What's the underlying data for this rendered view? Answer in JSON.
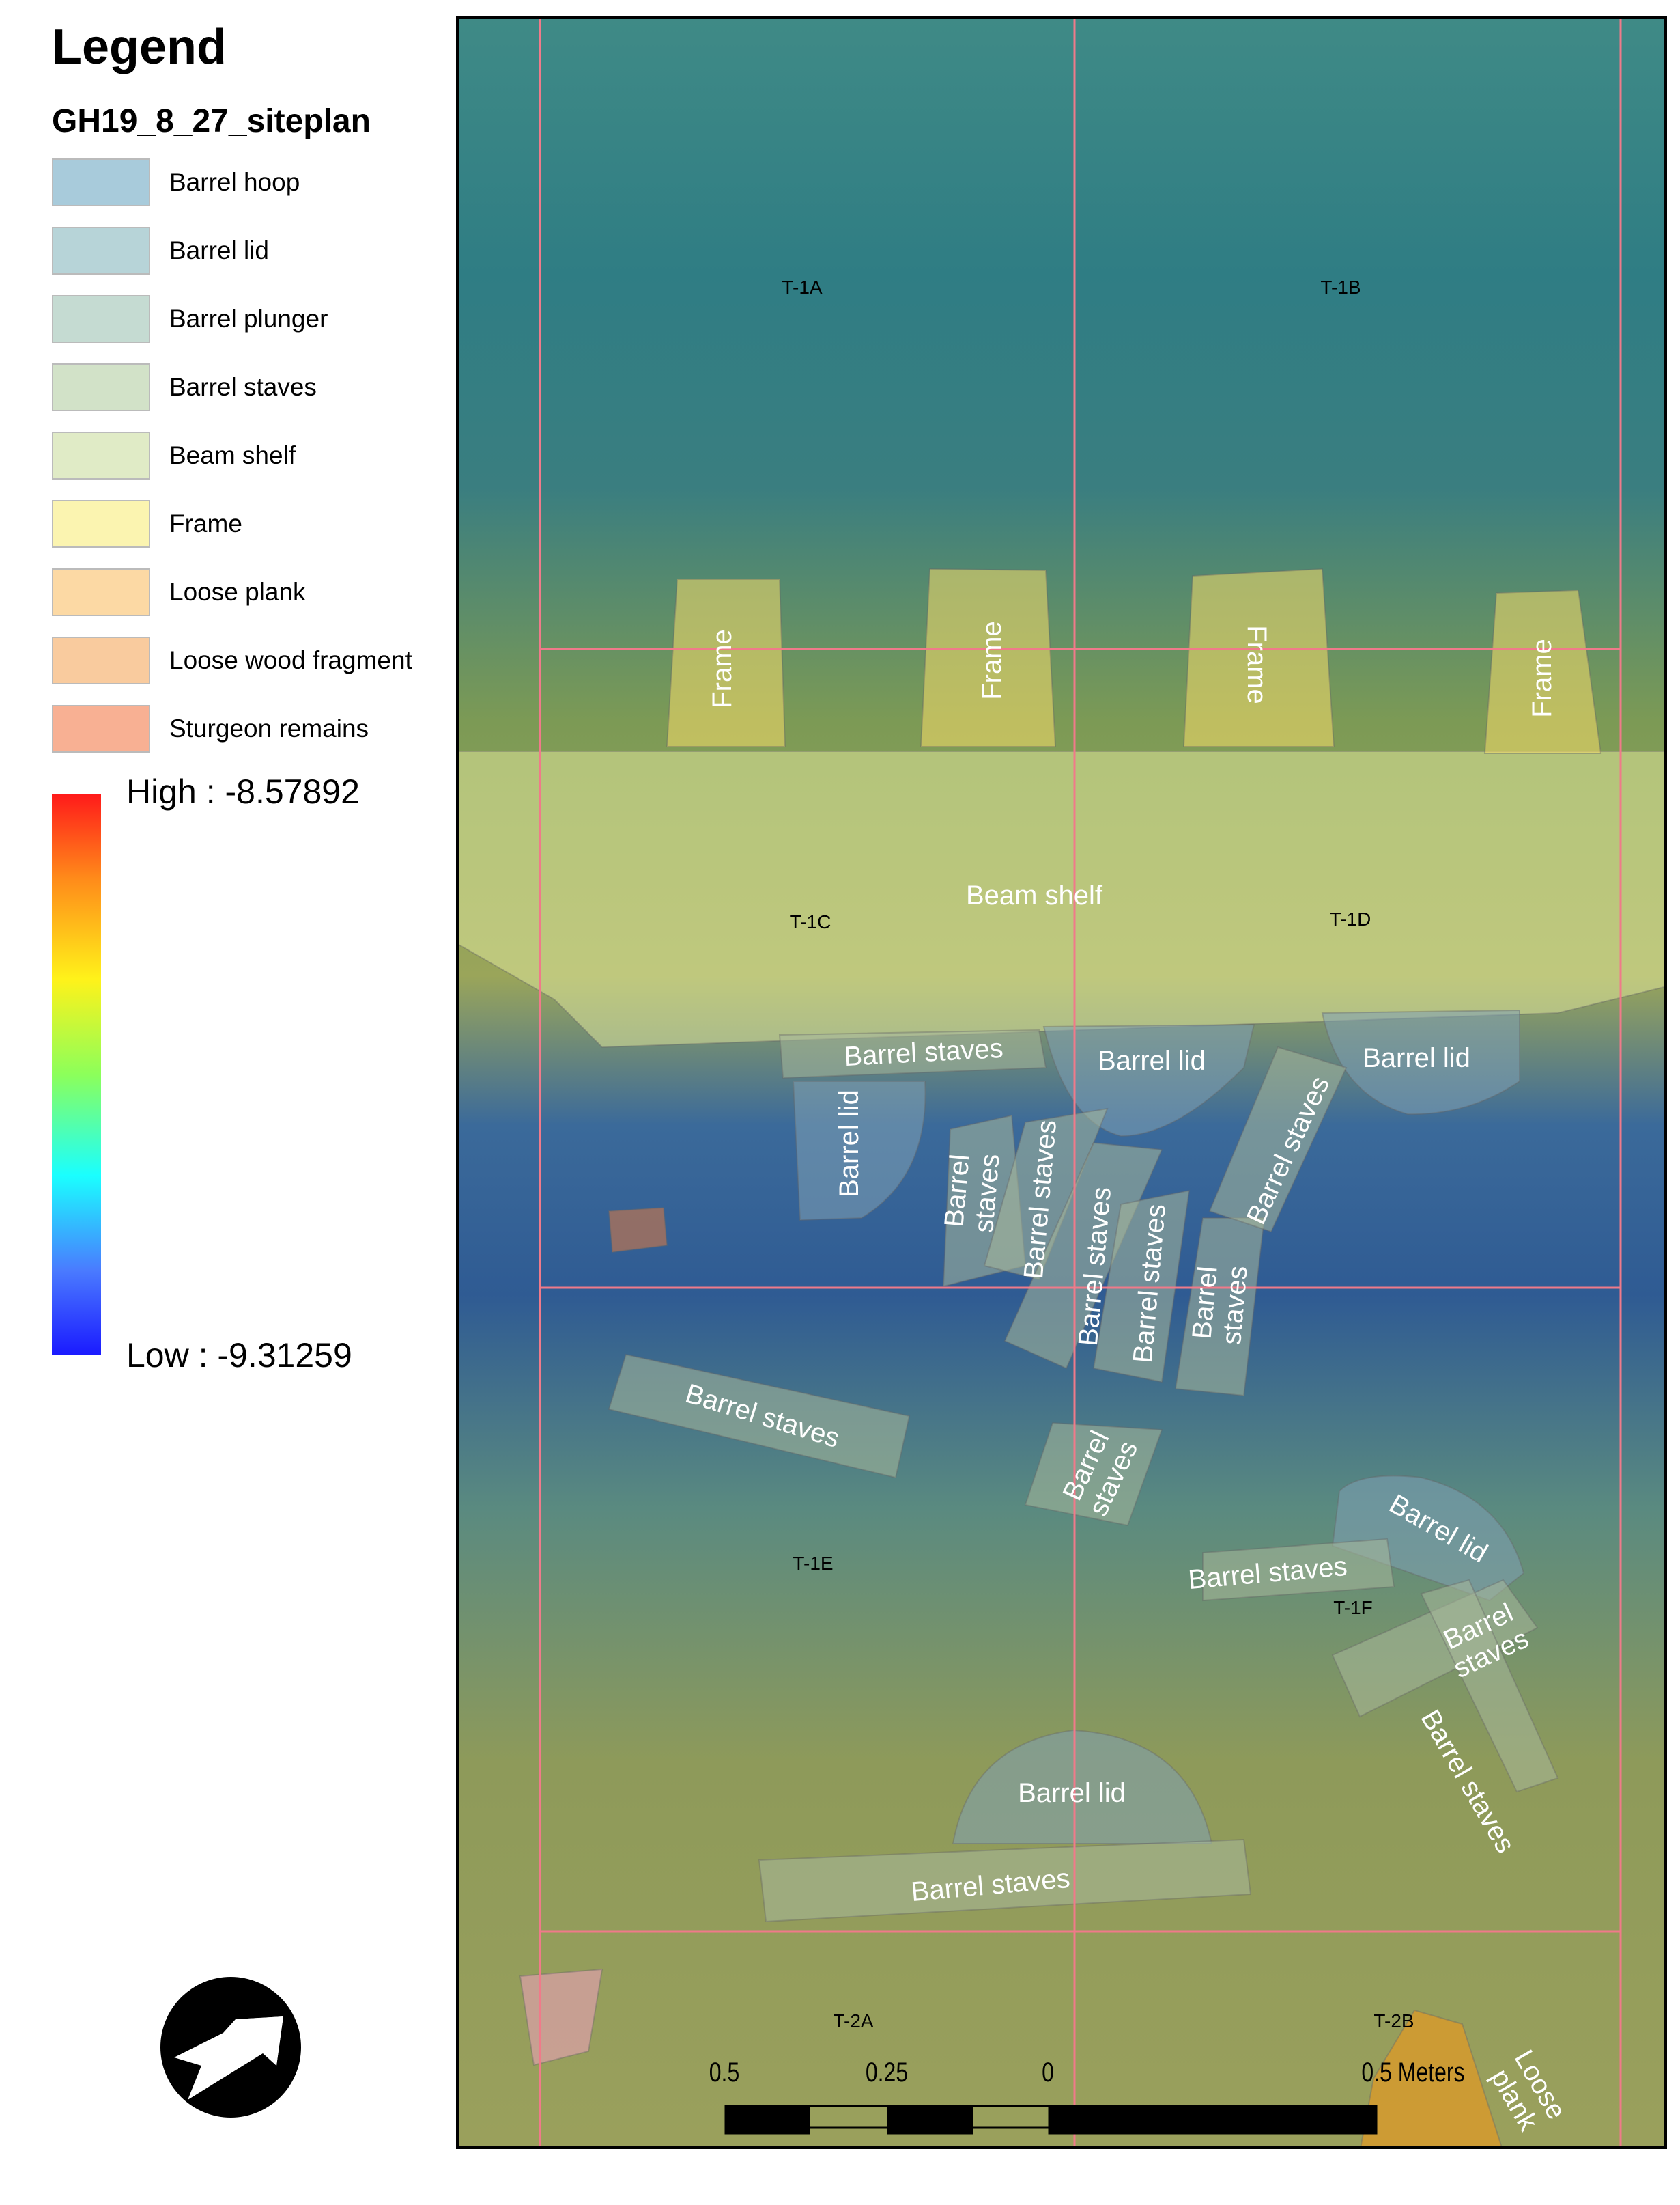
{
  "legend": {
    "title": "Legend",
    "layer": "GH19_8_27_siteplan",
    "items": [
      {
        "label": "Barrel hoop",
        "color": "#a8cbdb"
      },
      {
        "label": "Barrel lid",
        "color": "#b7d4d8"
      },
      {
        "label": "Barrel plunger",
        "color": "#c5dbd2"
      },
      {
        "label": "Barrel staves",
        "color": "#d2e2c8"
      },
      {
        "label": "Beam shelf",
        "color": "#e0ebc6"
      },
      {
        "label": "Frame",
        "color": "#fbf4b0"
      },
      {
        "label": "Loose plank",
        "color": "#fcd9a4"
      },
      {
        "label": "Loose wood fragment",
        "color": "#f9cb9e"
      },
      {
        "label": "Sturgeon remains",
        "color": "#f8b093"
      }
    ],
    "raster": {
      "high": "High : -8.57892",
      "low": "Low : -9.31259",
      "colormap": [
        "#ff1a1a",
        "#fff21a",
        "#1affff",
        "#1a1aff"
      ]
    }
  },
  "map": {
    "grid_labels": [
      "T-1A",
      "T-1B",
      "T-1C",
      "T-1D",
      "T-1E",
      "T-1F",
      "T-2A",
      "T-2B"
    ],
    "features": {
      "frame": "Frame",
      "beam_shelf": "Beam shelf",
      "barrel_lid": "Barrel lid",
      "barrel_staves": "Barrel staves",
      "barrel_staves_split": "Barrel\nstaves",
      "loose_plank": "Loose\nplank"
    },
    "grid_color": "#f07a8a"
  },
  "scale_bar": {
    "labels": [
      "0.5",
      "0.25",
      "0",
      "0.5 Meters"
    ]
  },
  "north_arrow": {
    "icon": "north-arrow-icon"
  }
}
